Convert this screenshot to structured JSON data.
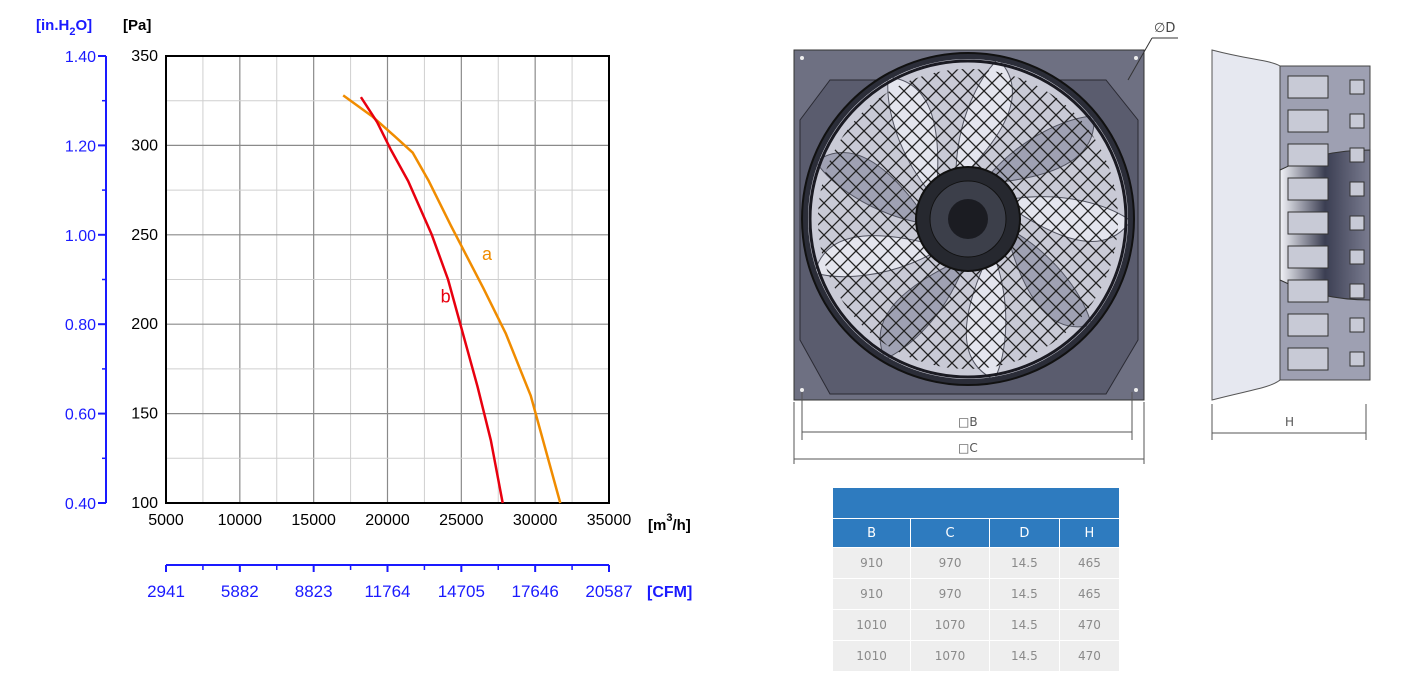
{
  "chart_data": {
    "type": "line",
    "y_unit_left": "[Pa]",
    "y_unit_outer_prefix": "[in.H",
    "y_unit_outer_sub": "2",
    "y_unit_outer_suffix": "O]",
    "x_unit": "[m",
    "x_unit_sup": "3",
    "x_unit_suffix": "/h]",
    "x2_unit": "[CFM]",
    "xlim": [
      5000,
      35000
    ],
    "ylim": [
      100,
      350
    ],
    "x_ticks": [
      "5000",
      "10000",
      "15000",
      "20000",
      "25000",
      "30000",
      "35000"
    ],
    "y_ticks": [
      "100",
      "150",
      "200",
      "250",
      "300",
      "350"
    ],
    "y2_ticks": [
      "0.40",
      "0.60",
      "0.80",
      "1.00",
      "1.20",
      "1.40"
    ],
    "x2_ticks": [
      "2941",
      "5882",
      "8823",
      "11764",
      "14705",
      "17646",
      "20587"
    ],
    "grid": true,
    "series": [
      {
        "name": "a",
        "color": "#f08c00",
        "points": [
          [
            17000,
            328
          ],
          [
            19000,
            316
          ],
          [
            20500,
            305
          ],
          [
            21700,
            296
          ],
          [
            22800,
            280
          ],
          [
            24300,
            255
          ],
          [
            26500,
            220
          ],
          [
            28000,
            195
          ],
          [
            29700,
            160
          ],
          [
            31700,
            100
          ]
        ]
      },
      {
        "name": "b",
        "color": "#e8000f",
        "points": [
          [
            18200,
            327
          ],
          [
            19300,
            313
          ],
          [
            20200,
            298
          ],
          [
            21400,
            280
          ],
          [
            23000,
            250
          ],
          [
            24100,
            225
          ],
          [
            25000,
            198
          ],
          [
            26100,
            165
          ],
          [
            27000,
            135
          ],
          [
            27800,
            100
          ]
        ]
      }
    ],
    "annotations": [
      {
        "text": "a",
        "x": 26400,
        "y": 236
      },
      {
        "text": "b",
        "x": 23600,
        "y": 212
      }
    ]
  },
  "drawings": {
    "dims": {
      "phi": "∅",
      "d": "D",
      "square": "□",
      "b": "B",
      "c": "C",
      "h": "H"
    }
  },
  "table": {
    "headers": [
      "B",
      "C",
      "D",
      "H"
    ],
    "rows": [
      [
        "910",
        "970",
        "14.5",
        "465"
      ],
      [
        "910",
        "970",
        "14.5",
        "465"
      ],
      [
        "1010",
        "1070",
        "14.5",
        "470"
      ],
      [
        "1010",
        "1070",
        "14.5",
        "470"
      ]
    ]
  }
}
